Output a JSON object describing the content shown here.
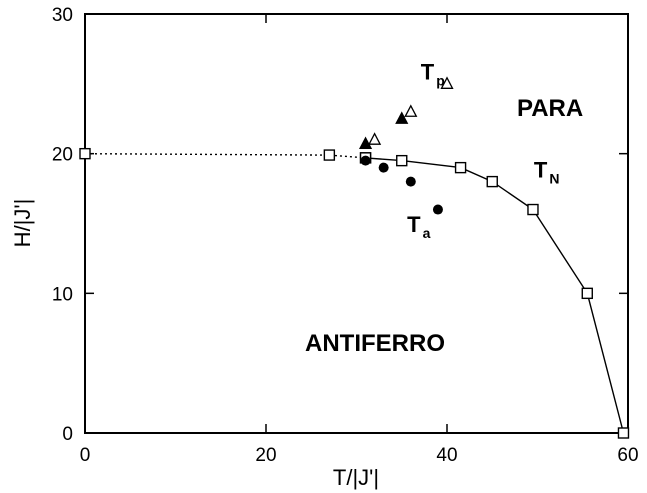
{
  "chart_data": {
    "type": "scatter",
    "xlabel": "T/|J'|",
    "ylabel": "H/|J'|",
    "xlim": [
      0,
      60
    ],
    "ylim": [
      0,
      30
    ],
    "xticks": [
      "0",
      "20",
      "40",
      "60"
    ],
    "yticks": [
      "0",
      "10",
      "20",
      "30"
    ],
    "grid": false,
    "regions": [
      {
        "id": "para",
        "label": "PARA"
      },
      {
        "id": "antiferro",
        "label": "ANTIFERRO"
      }
    ],
    "series": [
      {
        "key": "tn",
        "marker": "open-square",
        "line": "solid",
        "points": [
          [
            31,
            19.7
          ],
          [
            35,
            19.5
          ],
          [
            41.5,
            19
          ],
          [
            45,
            18
          ],
          [
            49.5,
            16
          ],
          [
            55.5,
            10
          ],
          [
            59.5,
            0
          ]
        ]
      },
      {
        "key": "low",
        "marker": "open-square",
        "line": "dotted",
        "points": [
          [
            0,
            20
          ],
          [
            27,
            19.9
          ],
          [
            31,
            19.7
          ]
        ]
      },
      {
        "key": "tp_filled",
        "marker": "filled-triangle",
        "line": "none",
        "points": [
          [
            31,
            20.7
          ],
          [
            35,
            22.5
          ]
        ]
      },
      {
        "key": "tp_open",
        "marker": "open-triangle",
        "line": "none",
        "points": [
          [
            32,
            21
          ],
          [
            36,
            23
          ],
          [
            40,
            25
          ]
        ]
      },
      {
        "key": "ta",
        "marker": "filled-circle",
        "line": "none",
        "points": [
          [
            31,
            19.5
          ],
          [
            33,
            19
          ],
          [
            36,
            18
          ],
          [
            39,
            16
          ]
        ]
      }
    ],
    "annotations": [
      {
        "id": "tp-label",
        "base": "T",
        "sub": "p",
        "x": 37.1,
        "y": 25.3
      },
      {
        "id": "tn-label",
        "base": "T",
        "sub": "N",
        "x": 49.6,
        "y": 18.3
      },
      {
        "id": "ta-label",
        "base": "T",
        "sub": "a",
        "x": 35.6,
        "y": 14.4
      }
    ]
  }
}
